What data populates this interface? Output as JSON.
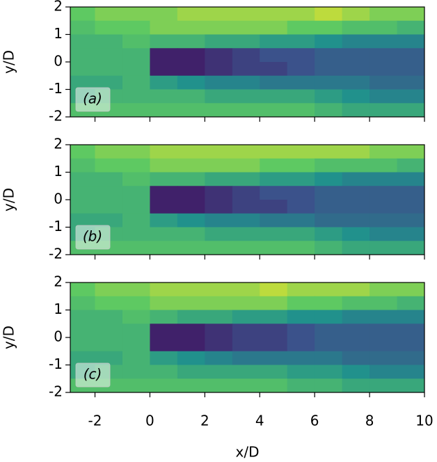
{
  "chart_data": [
    {
      "type": "heatmap",
      "ylabel": "y/D",
      "panel_label": "(a)",
      "xlim": [
        -2.9,
        10
      ],
      "ylim": [
        -2,
        2
      ],
      "xticks": [
        -2,
        0,
        2,
        4,
        6,
        8,
        10
      ],
      "yticks": [
        2,
        1,
        0,
        -1,
        -2
      ],
      "x_edges": [
        -3,
        -2,
        -1,
        0,
        1,
        2,
        3,
        4,
        5,
        6,
        7,
        8,
        9,
        10
      ],
      "y_edges": [
        2,
        1.5,
        1,
        0.5,
        0,
        -0.5,
        -1,
        -1.5,
        -2
      ],
      "values": [
        [
          0.75,
          0.8,
          0.8,
          0.8,
          0.85,
          0.85,
          0.85,
          0.85,
          0.85,
          0.9,
          0.85,
          0.8,
          0.8
        ],
        [
          0.7,
          0.75,
          0.75,
          0.8,
          0.8,
          0.8,
          0.8,
          0.8,
          0.75,
          0.75,
          0.7,
          0.7,
          0.65
        ],
        [
          0.65,
          0.65,
          0.7,
          0.65,
          0.65,
          0.6,
          0.6,
          0.55,
          0.55,
          0.5,
          0.45,
          0.45,
          0.45
        ],
        [
          0.65,
          0.65,
          0.65,
          0.1,
          0.1,
          0.15,
          0.2,
          0.25,
          0.25,
          0.3,
          0.3,
          0.3,
          0.3
        ],
        [
          0.65,
          0.65,
          0.65,
          0.1,
          0.1,
          0.15,
          0.2,
          0.2,
          0.25,
          0.3,
          0.3,
          0.3,
          0.3
        ],
        [
          0.6,
          0.6,
          0.65,
          0.55,
          0.5,
          0.45,
          0.45,
          0.4,
          0.4,
          0.4,
          0.4,
          0.35,
          0.35
        ],
        [
          0.6,
          0.65,
          0.65,
          0.65,
          0.65,
          0.6,
          0.6,
          0.6,
          0.6,
          0.55,
          0.5,
          0.45,
          0.45
        ],
        [
          0.7,
          0.7,
          0.7,
          0.7,
          0.7,
          0.7,
          0.7,
          0.7,
          0.7,
          0.65,
          0.6,
          0.6,
          0.6
        ]
      ]
    },
    {
      "type": "heatmap",
      "ylabel": "y/D",
      "panel_label": "(b)",
      "xlim": [
        -2.9,
        10
      ],
      "ylim": [
        -2,
        2
      ],
      "xticks": [
        -2,
        0,
        2,
        4,
        6,
        8,
        10
      ],
      "yticks": [
        2,
        1,
        0,
        -1,
        -2
      ],
      "x_edges": [
        -3,
        -2,
        -1,
        0,
        1,
        2,
        3,
        4,
        5,
        6,
        7,
        8,
        9,
        10
      ],
      "y_edges": [
        2,
        1.5,
        1,
        0.5,
        0,
        -0.5,
        -1,
        -1.5,
        -2
      ],
      "values": [
        [
          0.75,
          0.8,
          0.8,
          0.85,
          0.85,
          0.85,
          0.85,
          0.85,
          0.85,
          0.85,
          0.85,
          0.8,
          0.8
        ],
        [
          0.7,
          0.75,
          0.75,
          0.8,
          0.8,
          0.8,
          0.8,
          0.75,
          0.75,
          0.7,
          0.7,
          0.7,
          0.65
        ],
        [
          0.65,
          0.65,
          0.7,
          0.65,
          0.65,
          0.6,
          0.6,
          0.55,
          0.55,
          0.5,
          0.45,
          0.45,
          0.45
        ],
        [
          0.65,
          0.65,
          0.65,
          0.1,
          0.1,
          0.15,
          0.2,
          0.25,
          0.25,
          0.3,
          0.3,
          0.3,
          0.3
        ],
        [
          0.65,
          0.65,
          0.65,
          0.1,
          0.1,
          0.15,
          0.2,
          0.2,
          0.25,
          0.3,
          0.3,
          0.3,
          0.3
        ],
        [
          0.6,
          0.6,
          0.65,
          0.55,
          0.5,
          0.45,
          0.45,
          0.4,
          0.4,
          0.35,
          0.35,
          0.35,
          0.35
        ],
        [
          0.6,
          0.65,
          0.65,
          0.65,
          0.65,
          0.6,
          0.6,
          0.6,
          0.6,
          0.55,
          0.5,
          0.45,
          0.45
        ],
        [
          0.7,
          0.7,
          0.7,
          0.7,
          0.7,
          0.7,
          0.7,
          0.7,
          0.7,
          0.65,
          0.6,
          0.6,
          0.6
        ]
      ]
    },
    {
      "type": "heatmap",
      "ylabel": "y/D",
      "panel_label": "(c)",
      "xlabel": "x/D",
      "xlim": [
        -2.9,
        10
      ],
      "ylim": [
        -2,
        2
      ],
      "xticks": [
        -2,
        0,
        2,
        4,
        6,
        8,
        10
      ],
      "yticks": [
        2,
        1,
        0,
        -1,
        -2
      ],
      "x_edges": [
        -3,
        -2,
        -1,
        0,
        1,
        2,
        3,
        4,
        5,
        6,
        7,
        8,
        9,
        10
      ],
      "y_edges": [
        2,
        1.5,
        1,
        0.5,
        0,
        -0.5,
        -1,
        -1.5,
        -2
      ],
      "values": [
        [
          0.75,
          0.8,
          0.8,
          0.85,
          0.85,
          0.85,
          0.85,
          0.9,
          0.85,
          0.85,
          0.85,
          0.8,
          0.8
        ],
        [
          0.7,
          0.75,
          0.75,
          0.8,
          0.8,
          0.8,
          0.8,
          0.8,
          0.75,
          0.75,
          0.7,
          0.7,
          0.65
        ],
        [
          0.65,
          0.65,
          0.7,
          0.65,
          0.6,
          0.6,
          0.55,
          0.55,
          0.5,
          0.5,
          0.45,
          0.45,
          0.45
        ],
        [
          0.65,
          0.65,
          0.65,
          0.1,
          0.1,
          0.15,
          0.2,
          0.2,
          0.25,
          0.3,
          0.3,
          0.3,
          0.3
        ],
        [
          0.65,
          0.65,
          0.65,
          0.1,
          0.1,
          0.15,
          0.2,
          0.2,
          0.25,
          0.3,
          0.3,
          0.3,
          0.3
        ],
        [
          0.6,
          0.6,
          0.65,
          0.55,
          0.5,
          0.45,
          0.4,
          0.4,
          0.4,
          0.4,
          0.35,
          0.35,
          0.35
        ],
        [
          0.6,
          0.65,
          0.65,
          0.65,
          0.6,
          0.6,
          0.6,
          0.6,
          0.55,
          0.55,
          0.5,
          0.45,
          0.45
        ],
        [
          0.7,
          0.7,
          0.7,
          0.7,
          0.7,
          0.7,
          0.7,
          0.7,
          0.65,
          0.65,
          0.6,
          0.6,
          0.6
        ]
      ]
    }
  ]
}
